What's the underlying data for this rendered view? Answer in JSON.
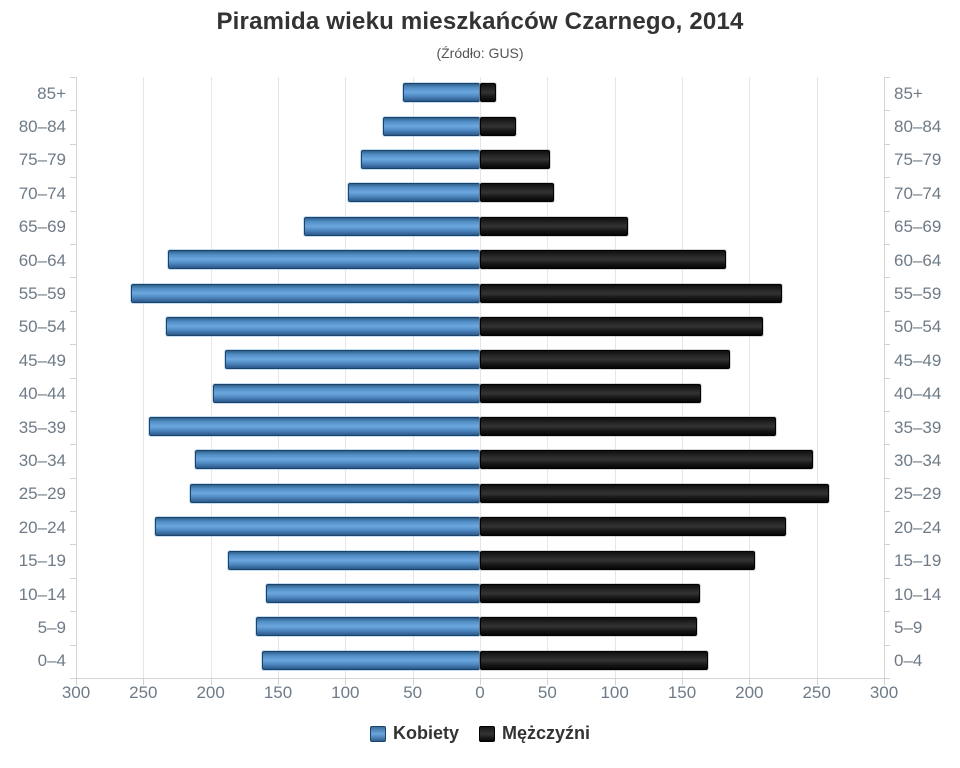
{
  "chart_data": {
    "type": "bar",
    "variant": "population-pyramid",
    "title": "Piramida wieku mieszkańców Czarnego, 2014",
    "subtitle": "(Źródło: GUS)",
    "categories": [
      "85+",
      "80–84",
      "75–79",
      "70–74",
      "65–69",
      "60–64",
      "55–59",
      "50–54",
      "45–49",
      "40–44",
      "35–39",
      "30–34",
      "25–29",
      "20–24",
      "15–19",
      "10–14",
      "5–9",
      "0–4"
    ],
    "series": [
      {
        "name": "Kobiety",
        "side": "left",
        "color": "#4f8cc6",
        "values": [
          57,
          72,
          88,
          98,
          131,
          232,
          259,
          233,
          189,
          198,
          246,
          212,
          215,
          241,
          187,
          159,
          166,
          162
        ]
      },
      {
        "name": "Mężczyźni",
        "side": "right",
        "color": "#1a1a1a",
        "values": [
          12,
          27,
          52,
          55,
          110,
          183,
          224,
          210,
          186,
          164,
          220,
          247,
          259,
          227,
          204,
          163,
          161,
          169
        ]
      }
    ],
    "xlabel": "",
    "ylabel": "",
    "x_ticks": [
      -300,
      -250,
      -200,
      -150,
      -100,
      -50,
      0,
      50,
      100,
      150,
      200,
      250,
      300
    ],
    "x_tick_labels": [
      "300",
      "250",
      "200",
      "150",
      "100",
      "50",
      "0",
      "50",
      "100",
      "150",
      "200",
      "250",
      "300"
    ],
    "xlim": [
      -300,
      300
    ],
    "grid": true,
    "legend_position": "bottom",
    "colors": {
      "grid": "#e6e6e6",
      "axis": "#d5d5d5",
      "tick": "#cdd3d7",
      "axis_label": "#6e7b87",
      "title": "#333333",
      "subtitle": "#555555",
      "legend_text": "#333333"
    }
  }
}
